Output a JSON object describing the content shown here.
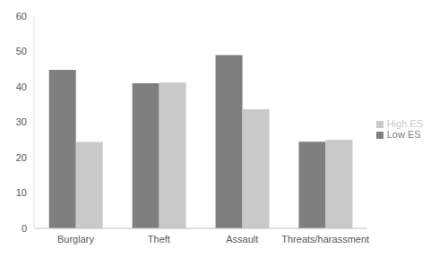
{
  "chart_data": {
    "type": "bar",
    "categories": [
      "Burglary",
      "Theft",
      "Assault",
      "Threats/harassment"
    ],
    "series": [
      {
        "name": "Low ES",
        "color": "#7f7f7f",
        "values": [
          44.8,
          41,
          49,
          24.5
        ]
      },
      {
        "name": "High ES",
        "color": "#c9c9c9",
        "values": [
          24.4,
          41.2,
          33.7,
          25
        ]
      }
    ],
    "ylim": [
      0,
      60
    ],
    "yticks": [
      0,
      10,
      20,
      30,
      40,
      50,
      60
    ],
    "grid": false,
    "legend": "right"
  }
}
